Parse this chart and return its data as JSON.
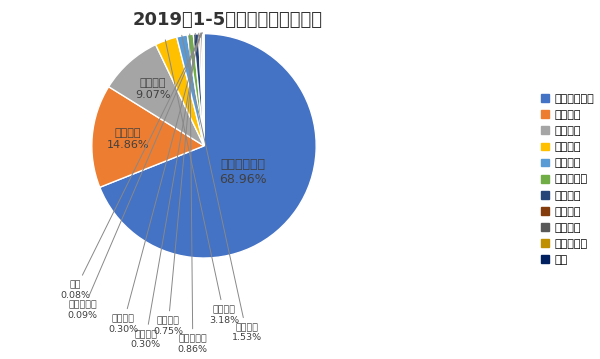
{
  "title": "2019年1-5月微客市场企业份额",
  "labels": [
    "上汽通用五菱",
    "金杯汽车",
    "东风集团",
    "重庆长安",
    "奇瑞汽车",
    "北汽制造厂",
    "福田汽车",
    "一汽集团",
    "北汽银翔",
    "力帆乘用车",
    "其他"
  ],
  "values": [
    68.96,
    14.86,
    9.07,
    3.18,
    1.53,
    0.86,
    0.75,
    0.3,
    0.3,
    0.09,
    0.08
  ],
  "colors": [
    "#4472C4",
    "#ED7D31",
    "#A5A5A5",
    "#FFC000",
    "#4472C4",
    "#70AD47",
    "#264478",
    "#843C0C",
    "#595959",
    "#BF8F00",
    "#002060"
  ],
  "legend_colors": [
    "#4472C4",
    "#ED7D31",
    "#A5A5A5",
    "#FFC000",
    "#4472C4",
    "#70AD47",
    "#264478",
    "#843C0C",
    "#595959",
    "#BF8F00",
    "#002060"
  ],
  "title_fontsize": 13,
  "label_fontsize": 8,
  "legend_fontsize": 8,
  "background_color": "#FFFFFF"
}
